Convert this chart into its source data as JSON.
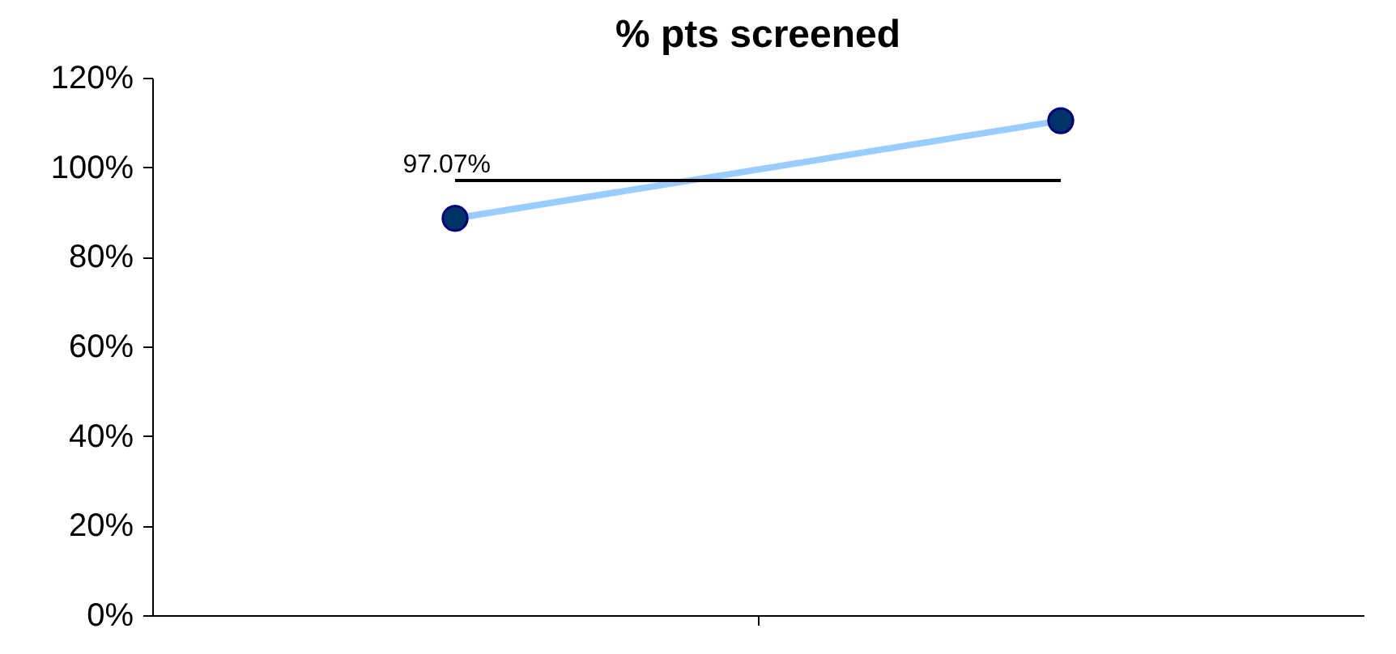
{
  "chart_data": {
    "type": "line",
    "title": "% pts screened",
    "categories": [
      null,
      null
    ],
    "series": [
      {
        "color": "#99ccff",
        "values": [
          88.6,
          110.4
        ]
      }
    ],
    "marker": "circle",
    "line_style": "solid",
    "grid": false,
    "tick_labels": "y",
    "ylim": [
      0,
      120
    ],
    "yticks": [
      {
        "value": 0,
        "label": "0%"
      },
      {
        "value": 20,
        "label": "20%"
      },
      {
        "value": 40,
        "label": "40%"
      },
      {
        "value": 60,
        "label": "60%"
      },
      {
        "value": 80,
        "label": "80%"
      },
      {
        "value": 100,
        "label": "100%"
      },
      {
        "value": 120,
        "label": "120%"
      }
    ],
    "ref_lines": [
      {
        "axis": "y",
        "value": 97.07,
        "label": "97.07%",
        "color": "#000000",
        "line_style": "solid"
      }
    ]
  }
}
